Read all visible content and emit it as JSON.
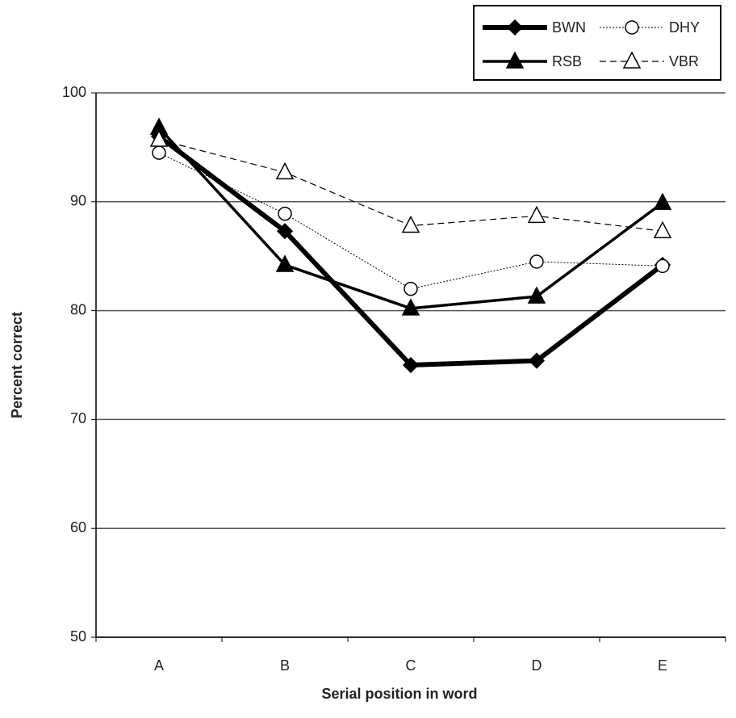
{
  "chart_data": {
    "type": "line",
    "x_label": "Serial position in word",
    "y_label": "Percent correct",
    "categories": [
      "A",
      "B",
      "C",
      "D",
      "E"
    ],
    "series": [
      {
        "name": "BWN",
        "color": "#000000",
        "line_width": 6,
        "dash": "none",
        "marker": "diamond",
        "marker_fill": "#000000",
        "values": [
          96,
          87.3,
          75,
          75.4,
          84.2
        ]
      },
      {
        "name": "DHY",
        "color": "#000000",
        "line_width": 1,
        "dash": "2,2",
        "marker": "circle",
        "marker_fill": "#ffffff",
        "values": [
          94.5,
          88.9,
          82,
          84.5,
          84.1
        ]
      },
      {
        "name": "RSB",
        "color": "#000000",
        "line_width": 3.5,
        "dash": "none",
        "marker": "triangle",
        "marker_fill": "#000000",
        "values": [
          96.8,
          84.2,
          80.2,
          81.3,
          89.9
        ]
      },
      {
        "name": "VBR",
        "color": "#000000",
        "line_width": 1.2,
        "dash": "8,5",
        "marker": "triangle",
        "marker_fill": "#ffffff",
        "values": [
          95.7,
          92.7,
          87.8,
          88.7,
          87.3
        ]
      }
    ],
    "ylim": [
      50,
      100
    ],
    "yticks": [
      50,
      60,
      70,
      80,
      90,
      100
    ],
    "grid": true,
    "legend": "top-right"
  }
}
